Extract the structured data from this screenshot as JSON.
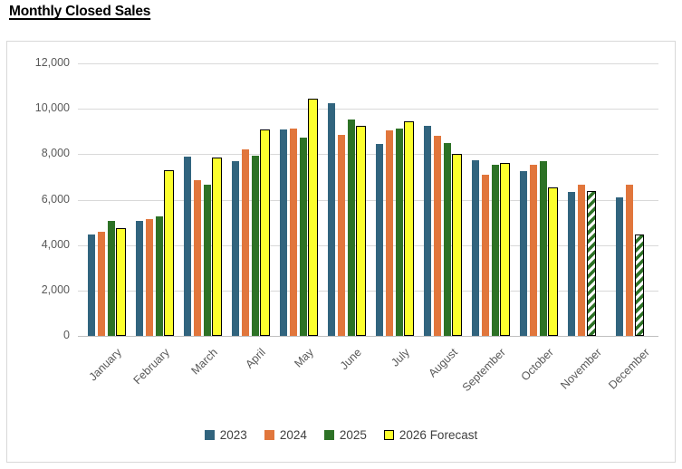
{
  "page": {
    "title": "Monthly Closed Sales"
  },
  "chart_data": {
    "type": "bar",
    "title": "Monthly Closed Sales",
    "categories": [
      "January",
      "February",
      "March",
      "April",
      "May",
      "June",
      "July",
      "August",
      "September",
      "October",
      "November",
      "December"
    ],
    "series": [
      {
        "name": "2023",
        "color": "#31647E",
        "values": [
          4450,
          5080,
          7900,
          7700,
          9100,
          10250,
          8450,
          9250,
          7750,
          7250,
          6350,
          6100
        ]
      },
      {
        "name": "2024",
        "color": "#E1763C",
        "values": [
          4580,
          5150,
          6850,
          8200,
          9150,
          8850,
          9050,
          8800,
          7100,
          7550,
          6650,
          6650
        ]
      },
      {
        "name": "2025",
        "color": "#2D7226",
        "values": [
          5050,
          5250,
          6650,
          7950,
          8750,
          9550,
          9150,
          8500,
          7550,
          7700,
          6400,
          4450
        ],
        "hatched_categories": [
          "November",
          "December"
        ],
        "hatch_style": "white with green diagonal stripes, black outline"
      },
      {
        "name": "2026 Forecast",
        "color": "#FCFF2E",
        "outline": "#000000",
        "values": [
          4750,
          7300,
          7850,
          9100,
          10450,
          9250,
          9450,
          8000,
          7600,
          6550,
          null,
          null
        ]
      }
    ],
    "ylim": [
      0,
      12000
    ],
    "ytick_step": 2000,
    "ytick_labels": [
      "0",
      "2,000",
      "4,000",
      "6,000",
      "8,000",
      "10,000",
      "12,000"
    ],
    "xlabel": "",
    "ylabel": "",
    "grid": true,
    "x_tick_rotation_deg": -45,
    "legend_position": "bottom",
    "colors": {
      "gridline": "#d9d9d9",
      "axis_line": "#bfbfbf",
      "tick_text": "#595959",
      "legend_text": "#404040",
      "panel_border": "#d8d8d8"
    }
  }
}
